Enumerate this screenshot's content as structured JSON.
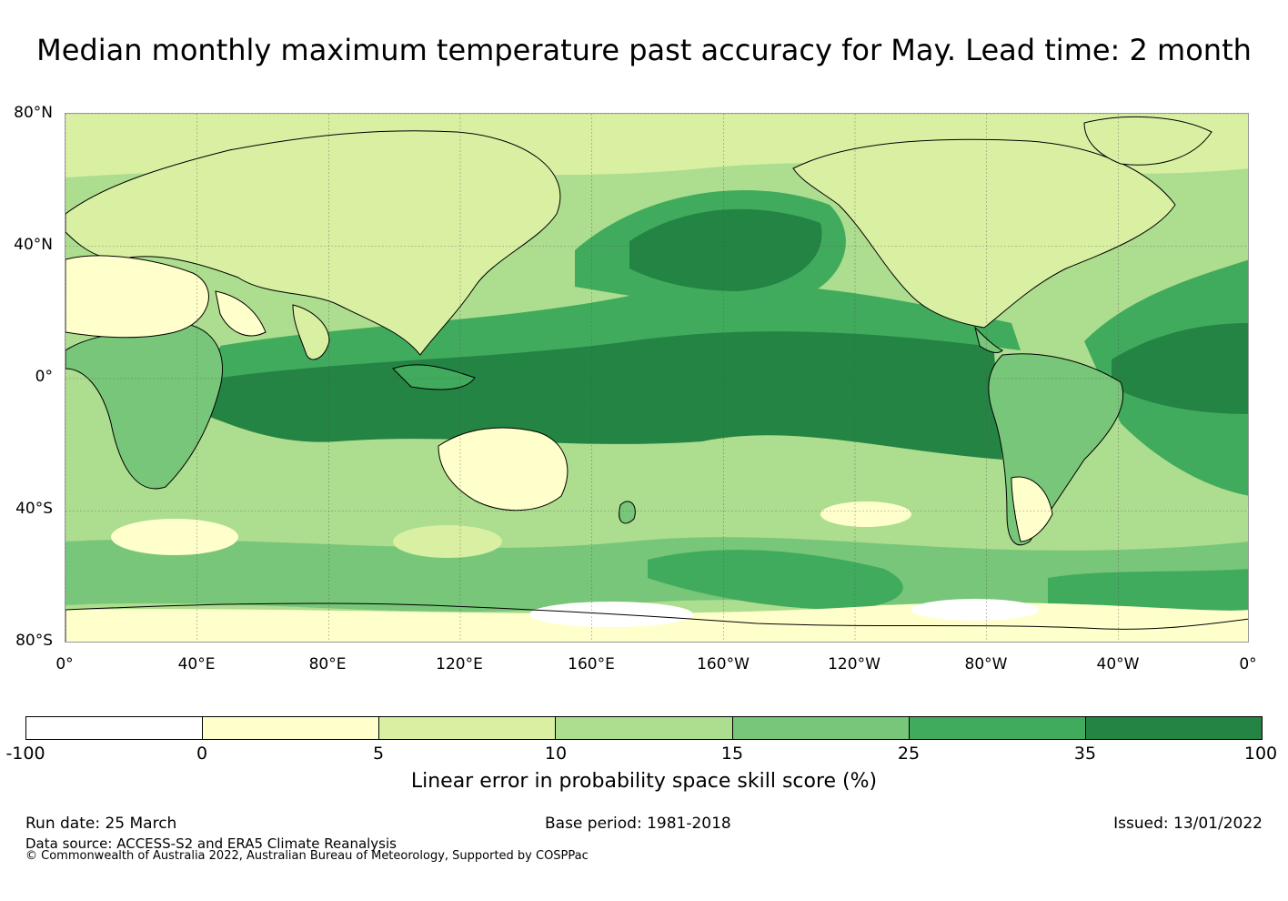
{
  "title": "Median monthly maximum temperature past accuracy for May. Lead time: 2 month",
  "map": {
    "lat_labels": [
      "80°N",
      "40°N",
      "0°",
      "40°S",
      "80°S"
    ],
    "lon_labels": [
      "0°",
      "40°E",
      "80°E",
      "120°E",
      "160°E",
      "160°W",
      "120°W",
      "80°W",
      "40°W",
      "0°"
    ],
    "extent": {
      "lon_start": 0,
      "lon_end": 360,
      "lat_top": 80,
      "lat_bottom": -80
    },
    "gridline_color": "#555555",
    "coast_color": "#000000"
  },
  "colorbar": {
    "ticks": [
      "-100",
      "0",
      "5",
      "10",
      "15",
      "25",
      "35",
      "100"
    ],
    "colors": [
      "#ffffff",
      "#ffffcc",
      "#d9f0a3",
      "#addd8e",
      "#78c679",
      "#41ab5d",
      "#238443"
    ],
    "label": "Linear error in probability space skill score (%)"
  },
  "footer": {
    "run_date": "Run date: 25 March",
    "base_period": "Base period: 1981-2018",
    "issued": "Issued: 13/01/2022",
    "data_source": "Data source: ACCESS-S2 and ERA5 Climate Reanalysis",
    "copyright": "© Commonwealth of Australia 2022, Australian Bureau of Meteorology, Supported by COSPPac"
  }
}
